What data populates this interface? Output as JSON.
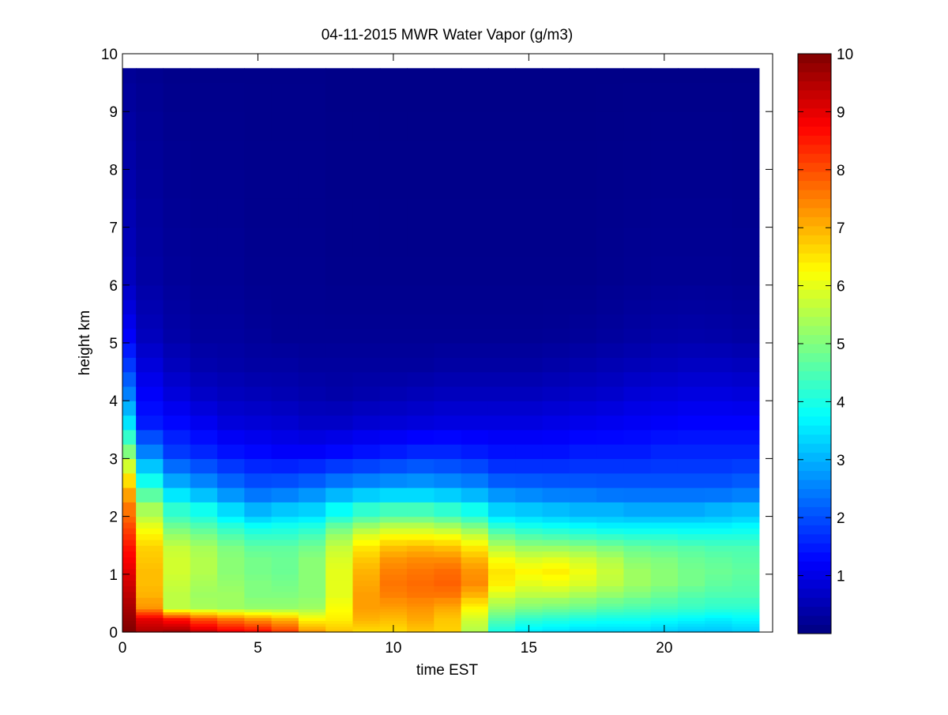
{
  "chart_data": {
    "type": "heatmap",
    "title": "04-11-2015 MWR Water Vapor (g/m3)",
    "xlabel": "time EST",
    "ylabel": "height km",
    "xlim": [
      0,
      24
    ],
    "ylim": [
      0,
      10
    ],
    "x_ticks": [
      "0",
      "5",
      "10",
      "15",
      "20"
    ],
    "y_ticks": [
      "0",
      "1",
      "2",
      "3",
      "4",
      "5",
      "6",
      "7",
      "8",
      "9",
      "10"
    ],
    "colorbar": {
      "colormap": "jet",
      "range": [
        0,
        10
      ],
      "ticks": [
        "1",
        "2",
        "3",
        "4",
        "5",
        "6",
        "7",
        "8",
        "9",
        "10"
      ]
    },
    "x_bin_edges": [
      0,
      0.5,
      1.5,
      2.5,
      3.5,
      4.5,
      5.5,
      6.5,
      7.5,
      8.5,
      9.5,
      10.5,
      11.5,
      12.5,
      13.5,
      14.5,
      15.5,
      16.5,
      17.5,
      18.5,
      19.5,
      20.5,
      21.5,
      22.5,
      23.5
    ],
    "heights_km": [
      0.0,
      0.05,
      0.1,
      0.15,
      0.2,
      0.25,
      0.3,
      0.35,
      0.4,
      0.45,
      0.5,
      0.6,
      0.7,
      0.8,
      0.9,
      1.0,
      1.1,
      1.2,
      1.3,
      1.4,
      1.5,
      1.6,
      1.7,
      1.8,
      1.9,
      2.0,
      2.25,
      2.5,
      2.75,
      3.0,
      3.25,
      3.5,
      3.75,
      4.0,
      4.25,
      4.5,
      4.75,
      5.0,
      5.25,
      5.5,
      5.75,
      6.0,
      6.5,
      7.0,
      7.5,
      8.0,
      8.5,
      9.0,
      9.5,
      9.75
    ],
    "profiles": {
      "heights": [
        0.0,
        0.2,
        0.4,
        0.6,
        0.8,
        1.0,
        1.2,
        1.4,
        1.6,
        1.8,
        2.0,
        2.3,
        2.6,
        3.0,
        3.5,
        4.0,
        4.5,
        5.0,
        6.0,
        9.75
      ],
      "values": [
        [
          10.0,
          9.8,
          9.6,
          9.4,
          9.2,
          9.0,
          8.8,
          8.6,
          8.3,
          8.0,
          7.6,
          7.1,
          6.3,
          5.0,
          3.5,
          2.5,
          1.8,
          1.2,
          0.6,
          0.2
        ],
        [
          9.5,
          9.0,
          7.3,
          7.0,
          6.9,
          6.9,
          6.8,
          6.7,
          6.4,
          6.0,
          5.4,
          4.5,
          3.6,
          2.5,
          1.5,
          1.2,
          0.9,
          0.6,
          0.35,
          0.15
        ],
        [
          9.6,
          8.6,
          5.6,
          5.6,
          5.7,
          5.8,
          5.8,
          5.7,
          5.3,
          4.8,
          4.2,
          3.4,
          2.6,
          1.8,
          1.3,
          0.9,
          0.6,
          0.4,
          0.25,
          0.1
        ],
        [
          9.2,
          8.0,
          5.4,
          5.3,
          5.4,
          5.5,
          5.5,
          5.4,
          5.0,
          4.5,
          3.9,
          3.0,
          2.3,
          1.6,
          1.1,
          0.7,
          0.45,
          0.3,
          0.2,
          0.1
        ],
        [
          8.8,
          7.6,
          5.3,
          5.3,
          5.2,
          5.1,
          5.1,
          5.0,
          4.6,
          4.1,
          3.4,
          2.6,
          2.0,
          1.4,
          0.9,
          0.6,
          0.4,
          0.3,
          0.2,
          0.1
        ],
        [
          8.6,
          7.3,
          5.2,
          5.0,
          5.0,
          4.9,
          4.9,
          4.7,
          4.3,
          3.8,
          3.0,
          2.3,
          1.8,
          1.3,
          0.85,
          0.55,
          0.35,
          0.25,
          0.15,
          0.1
        ],
        [
          8.1,
          7.0,
          5.2,
          5.0,
          4.9,
          4.8,
          4.8,
          4.7,
          4.3,
          3.9,
          3.2,
          2.4,
          1.8,
          1.2,
          0.8,
          0.5,
          0.35,
          0.2,
          0.15,
          0.1
        ],
        [
          7.2,
          6.3,
          5.3,
          5.1,
          5.1,
          5.1,
          5.1,
          4.9,
          4.5,
          4.0,
          3.3,
          2.6,
          1.9,
          1.2,
          0.7,
          0.45,
          0.3,
          0.2,
          0.15,
          0.1
        ],
        [
          6.8,
          6.4,
          6.2,
          6.0,
          6.0,
          6.0,
          5.9,
          5.7,
          5.3,
          4.7,
          3.8,
          2.9,
          2.1,
          1.3,
          0.7,
          0.4,
          0.3,
          0.2,
          0.12,
          0.08
        ],
        [
          6.6,
          7.0,
          7.2,
          7.2,
          7.1,
          7.0,
          6.8,
          6.5,
          6.0,
          5.2,
          4.2,
          3.1,
          2.2,
          1.4,
          0.8,
          0.45,
          0.3,
          0.2,
          0.12,
          0.08
        ],
        [
          6.6,
          6.9,
          7.2,
          7.5,
          7.6,
          7.5,
          7.3,
          6.9,
          6.3,
          5.5,
          4.4,
          3.2,
          2.3,
          1.5,
          0.85,
          0.5,
          0.3,
          0.2,
          0.12,
          0.08
        ],
        [
          6.8,
          7.1,
          7.3,
          7.6,
          7.7,
          7.6,
          7.4,
          7.0,
          6.3,
          5.5,
          4.4,
          3.2,
          2.4,
          1.6,
          0.9,
          0.55,
          0.3,
          0.2,
          0.12,
          0.08
        ],
        [
          6.7,
          6.8,
          7.1,
          7.6,
          7.8,
          7.7,
          7.4,
          6.9,
          6.2,
          5.3,
          4.2,
          3.1,
          2.3,
          1.6,
          0.95,
          0.6,
          0.35,
          0.2,
          0.12,
          0.08
        ],
        [
          5.5,
          5.8,
          6.3,
          7.0,
          7.4,
          7.3,
          7.0,
          6.5,
          5.8,
          4.9,
          3.9,
          2.9,
          2.2,
          1.5,
          0.95,
          0.6,
          0.35,
          0.2,
          0.12,
          0.08
        ],
        [
          4.0,
          4.6,
          5.3,
          5.9,
          6.4,
          6.5,
          6.2,
          5.6,
          4.9,
          4.1,
          3.3,
          2.6,
          1.9,
          1.4,
          0.95,
          0.6,
          0.35,
          0.2,
          0.12,
          0.08
        ],
        [
          3.6,
          4.2,
          5.0,
          5.6,
          6.0,
          6.3,
          5.9,
          5.3,
          4.6,
          3.9,
          3.2,
          2.5,
          1.9,
          1.4,
          0.95,
          0.6,
          0.35,
          0.2,
          0.12,
          0.08
        ],
        [
          3.5,
          4.1,
          4.9,
          5.6,
          6.1,
          6.4,
          6.0,
          5.3,
          4.5,
          3.8,
          3.1,
          2.4,
          1.9,
          1.4,
          1.0,
          0.65,
          0.4,
          0.22,
          0.12,
          0.08
        ],
        [
          3.4,
          4.0,
          4.8,
          5.4,
          5.9,
          6.1,
          5.8,
          5.2,
          4.4,
          3.7,
          3.0,
          2.4,
          1.9,
          1.5,
          1.05,
          0.7,
          0.45,
          0.25,
          0.12,
          0.08
        ],
        [
          3.4,
          3.9,
          4.6,
          5.2,
          5.6,
          5.7,
          5.5,
          5.0,
          4.3,
          3.6,
          3.0,
          2.3,
          1.9,
          1.5,
          1.1,
          0.75,
          0.5,
          0.3,
          0.15,
          0.08
        ],
        [
          3.4,
          3.9,
          4.5,
          5.0,
          5.3,
          5.3,
          5.1,
          4.8,
          4.2,
          3.6,
          2.9,
          2.3,
          1.9,
          1.5,
          1.15,
          0.85,
          0.55,
          0.35,
          0.18,
          0.08
        ],
        [
          3.3,
          3.8,
          4.4,
          4.8,
          5.1,
          5.1,
          5.0,
          4.7,
          4.2,
          3.6,
          2.9,
          2.3,
          1.9,
          1.6,
          1.2,
          0.9,
          0.6,
          0.4,
          0.2,
          0.08
        ],
        [
          3.2,
          3.7,
          4.3,
          4.6,
          4.9,
          4.9,
          4.8,
          4.6,
          4.1,
          3.6,
          2.9,
          2.3,
          1.9,
          1.6,
          1.25,
          0.95,
          0.65,
          0.42,
          0.2,
          0.08
        ],
        [
          3.2,
          3.6,
          4.2,
          4.5,
          4.7,
          4.8,
          4.7,
          4.5,
          4.1,
          3.6,
          3.0,
          2.3,
          1.9,
          1.6,
          1.25,
          0.95,
          0.65,
          0.4,
          0.2,
          0.08
        ],
        [
          3.3,
          3.7,
          4.2,
          4.5,
          4.6,
          4.7,
          4.6,
          4.5,
          4.1,
          3.7,
          3.1,
          2.4,
          2.0,
          1.6,
          1.25,
          0.9,
          0.6,
          0.35,
          0.18,
          0.08
        ]
      ]
    }
  }
}
